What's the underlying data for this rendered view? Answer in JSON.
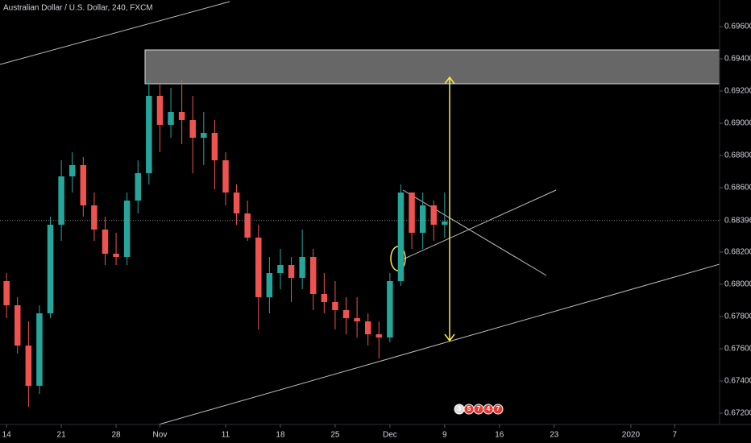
{
  "chart_data": {
    "type": "candlestick",
    "title": "Australian Dollar / U.S. Dollar, 240, FXCM",
    "x": [
      0,
      1,
      2,
      3,
      4,
      5,
      6,
      7,
      8,
      9,
      10,
      11,
      12,
      13,
      14,
      15,
      16,
      17,
      18,
      19,
      20,
      21,
      22,
      23,
      24,
      25,
      26,
      27,
      28,
      29,
      30,
      31,
      32,
      33,
      34,
      35,
      36,
      37,
      38,
      39,
      40
    ],
    "open": [
      0.6802,
      0.6787,
      0.6762,
      0.6737,
      0.6782,
      0.6837,
      0.6867,
      0.6874,
      0.6849,
      0.6834,
      0.6819,
      0.6817,
      0.6852,
      0.6869,
      0.6917,
      0.6899,
      0.6907,
      0.6902,
      0.6891,
      0.6894,
      0.6877,
      0.6857,
      0.6844,
      0.6829,
      0.6792,
      0.6807,
      0.6812,
      0.6804,
      0.6817,
      0.6794,
      0.6789,
      0.6784,
      0.6779,
      0.6777,
      0.6769,
      0.6767,
      0.6802,
      0.6857,
      0.6832,
      0.6849,
      0.6837
    ],
    "high": [
      0.6807,
      0.6792,
      0.6777,
      0.6787,
      0.6842,
      0.6877,
      0.6882,
      0.6879,
      0.6857,
      0.6842,
      0.6832,
      0.6857,
      0.6877,
      0.6927,
      0.6924,
      0.6922,
      0.6927,
      0.6917,
      0.6907,
      0.6902,
      0.6882,
      0.6862,
      0.6852,
      0.6837,
      0.6817,
      0.6822,
      0.6817,
      0.6834,
      0.6822,
      0.6807,
      0.6802,
      0.6792,
      0.6792,
      0.6782,
      0.6777,
      0.6807,
      0.6862,
      0.6857,
      0.6857,
      0.6852,
      0.6857
    ],
    "low": [
      0.6779,
      0.6757,
      0.6724,
      0.6732,
      0.6779,
      0.6827,
      0.6857,
      0.6842,
      0.6827,
      0.6812,
      0.6812,
      0.6812,
      0.6844,
      0.6862,
      0.6882,
      0.6891,
      0.6887,
      0.6869,
      0.6874,
      0.6859,
      0.6849,
      0.6837,
      0.6827,
      0.6772,
      0.6782,
      0.6797,
      0.6789,
      0.6797,
      0.6784,
      0.6782,
      0.6772,
      0.6769,
      0.6767,
      0.6762,
      0.6754,
      0.6764,
      0.6799,
      0.6822,
      0.6822,
      0.6827,
      0.6829
    ],
    "close": [
      0.6787,
      0.6762,
      0.6737,
      0.6782,
      0.6837,
      0.6867,
      0.6874,
      0.6849,
      0.6834,
      0.6819,
      0.6817,
      0.6852,
      0.6869,
      0.6917,
      0.6899,
      0.6907,
      0.6902,
      0.6891,
      0.6894,
      0.6877,
      0.6857,
      0.6844,
      0.6829,
      0.6792,
      0.6807,
      0.6812,
      0.6804,
      0.6817,
      0.6794,
      0.6789,
      0.6784,
      0.6779,
      0.6777,
      0.6769,
      0.6767,
      0.6802,
      0.6857,
      0.6832,
      0.6849,
      0.6837,
      0.6839
    ],
    "up_color": "#26a69a",
    "down_color": "#ef5350",
    "last_price": 0.68396,
    "xlim": [
      -0.6,
      65.1
    ],
    "ylim": [
      0.6713,
      0.69765
    ],
    "xticks": [
      {
        "value": 0,
        "label": "14"
      },
      {
        "value": 5,
        "label": "21"
      },
      {
        "value": 10,
        "label": "28"
      },
      {
        "value": 14,
        "label": "Nov"
      },
      {
        "value": 20,
        "label": "11"
      },
      {
        "value": 25,
        "label": "18"
      },
      {
        "value": 30,
        "label": "25"
      },
      {
        "value": 35,
        "label": "Dec"
      },
      {
        "value": 40,
        "label": "9"
      },
      {
        "value": 45,
        "label": "16"
      },
      {
        "value": 50,
        "label": "23"
      },
      {
        "value": 57,
        "label": "2020"
      },
      {
        "value": 61,
        "label": "7"
      }
    ],
    "yticks": [
      {
        "value": 0.696,
        "label": "0.69600"
      },
      {
        "value": 0.694,
        "label": "0.69400"
      },
      {
        "value": 0.692,
        "label": "0.69200"
      },
      {
        "value": 0.69,
        "label": "0.69000"
      },
      {
        "value": 0.688,
        "label": "0.68800"
      },
      {
        "value": 0.686,
        "label": "0.68600"
      },
      {
        "value": 0.684,
        "label": "0.68400"
      },
      {
        "value": 0.682,
        "label": "0.68200"
      },
      {
        "value": 0.68,
        "label": "0.68000"
      },
      {
        "value": 0.678,
        "label": "0.67800"
      },
      {
        "value": 0.676,
        "label": "0.67600"
      },
      {
        "value": 0.674,
        "label": "0.67400"
      },
      {
        "value": 0.672,
        "label": "0.67200"
      }
    ],
    "event_badges": [
      "3",
      "5",
      "7",
      "4",
      "7"
    ]
  }
}
